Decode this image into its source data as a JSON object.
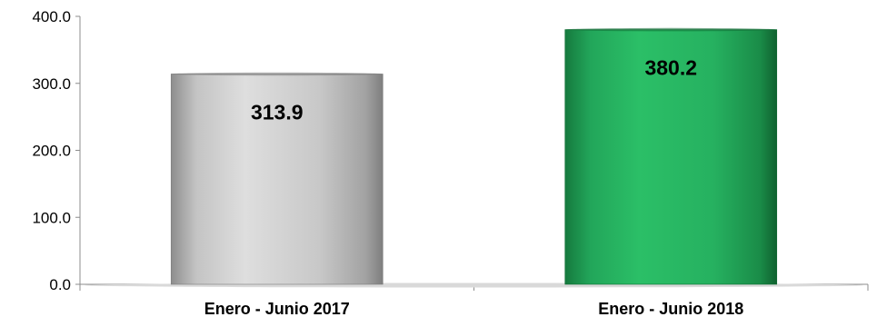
{
  "chart_data": {
    "type": "bar",
    "title": "",
    "xlabel": "",
    "ylabel": "",
    "categories": [
      "Enero - Junio 2017",
      "Enero - Junio 2018"
    ],
    "values": [
      313.9,
      380.2
    ],
    "value_labels": [
      "313.9",
      "380.2"
    ],
    "ylim": [
      0,
      400
    ],
    "yticks": [
      0,
      100,
      200,
      300,
      400
    ],
    "ytick_labels": [
      "0.0",
      "100.0",
      "200.0",
      "300.0",
      "400.0"
    ],
    "grid": false,
    "legend": "none",
    "bar_colors": [
      "#bdbdbd",
      "#1fa85a"
    ],
    "bar_edge_colors": [
      "#7a7a7a",
      "#0f6b33"
    ]
  }
}
